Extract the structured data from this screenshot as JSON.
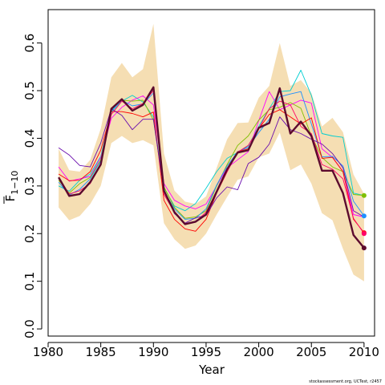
{
  "chart_data": {
    "type": "line",
    "xlabel": "Year",
    "ylabel_main": "F",
    "ylabel_sub": "1−10",
    "xlim": [
      1980,
      2011
    ],
    "ylim": [
      -0.015,
      0.67
    ],
    "x_ticks": [
      1980,
      1985,
      1990,
      1995,
      2000,
      2005,
      2010
    ],
    "y_ticks": [
      0.0,
      0.1,
      0.2,
      0.3,
      0.4,
      0.5,
      0.6
    ],
    "y_tick_labels": [
      "0.0",
      "0.1",
      "0.2",
      "0.3",
      "0.4",
      "0.5",
      "0.6"
    ],
    "credit": "stockassessment.org, UCTest, r2457",
    "band": {
      "color": "#F5DEB3",
      "x": [
        1981,
        1982,
        1983,
        1984,
        1985,
        1986,
        1987,
        1988,
        1989,
        1990,
        1991,
        1992,
        1993,
        1994,
        1995,
        1996,
        1997,
        1998,
        1999,
        2000,
        2001,
        2002,
        2003,
        2004,
        2005,
        2006,
        2007,
        2008,
        2009,
        2010
      ],
      "lower": [
        0.255,
        0.228,
        0.237,
        0.262,
        0.3,
        0.39,
        0.405,
        0.39,
        0.396,
        0.385,
        0.222,
        0.188,
        0.168,
        0.175,
        0.2,
        0.24,
        0.277,
        0.313,
        0.32,
        0.36,
        0.368,
        0.412,
        0.333,
        0.345,
        0.305,
        0.243,
        0.228,
        0.168,
        0.114,
        0.1
      ],
      "upper": [
        0.378,
        0.333,
        0.33,
        0.355,
        0.42,
        0.528,
        0.558,
        0.528,
        0.545,
        0.64,
        0.368,
        0.29,
        0.267,
        0.262,
        0.278,
        0.338,
        0.398,
        0.432,
        0.433,
        0.485,
        0.51,
        0.6,
        0.51,
        0.522,
        0.495,
        0.425,
        0.443,
        0.413,
        0.324,
        0.283
      ]
    },
    "series": [
      {
        "color": "#00CED1",
        "width": 0.9,
        "values": [
          0.3,
          0.289,
          0.312,
          0.325,
          0.362,
          0.455,
          0.478,
          0.49,
          0.476,
          0.445,
          0.296,
          0.258,
          0.248,
          0.263,
          0.295,
          0.33,
          0.358,
          0.37,
          0.384,
          0.425,
          0.462,
          0.498,
          0.5,
          0.543,
          0.49,
          0.41,
          0.405,
          0.402,
          0.285,
          0.28
        ],
        "end_dot": false
      },
      {
        "color": "#FF00FF",
        "width": 0.9,
        "values": [
          0.34,
          0.31,
          0.315,
          0.32,
          0.36,
          0.442,
          0.465,
          0.48,
          0.489,
          0.47,
          0.305,
          0.27,
          0.258,
          0.252,
          0.262,
          0.3,
          0.338,
          0.355,
          0.372,
          0.437,
          0.498,
          0.46,
          0.47,
          0.48,
          0.474,
          0.378,
          0.36,
          0.33,
          0.24,
          0.235
        ],
        "end_dot": false
      },
      {
        "color": "#7FBF00",
        "width": 0.9,
        "values": [
          0.312,
          0.285,
          0.305,
          0.318,
          0.355,
          0.46,
          0.48,
          0.478,
          0.48,
          0.438,
          0.298,
          0.255,
          0.232,
          0.235,
          0.248,
          0.3,
          0.345,
          0.385,
          0.405,
          0.438,
          0.46,
          0.465,
          0.475,
          0.463,
          0.405,
          0.36,
          0.34,
          0.33,
          0.282,
          0.28
        ],
        "end_dot": true
      },
      {
        "color": "#1E90FF",
        "width": 0.9,
        "values": [
          0.308,
          0.281,
          0.293,
          0.315,
          0.352,
          0.458,
          0.48,
          0.468,
          0.472,
          0.495,
          0.29,
          0.252,
          0.23,
          0.232,
          0.252,
          0.302,
          0.342,
          0.372,
          0.381,
          0.412,
          0.44,
          0.487,
          0.493,
          0.498,
          0.43,
          0.361,
          0.362,
          0.342,
          0.268,
          0.237
        ],
        "end_dot": true
      },
      {
        "color": "#FF0000",
        "width": 0.9,
        "values": [
          0.325,
          0.311,
          0.312,
          0.33,
          0.375,
          0.456,
          0.456,
          0.452,
          0.445,
          0.455,
          0.27,
          0.23,
          0.21,
          0.205,
          0.23,
          0.285,
          0.33,
          0.372,
          0.378,
          0.42,
          0.45,
          0.46,
          0.445,
          0.43,
          0.443,
          0.358,
          0.36,
          0.33,
          0.23,
          0.202
        ],
        "end_dot": true
      },
      {
        "color": "#FF0066",
        "width": 0.9,
        "values": [
          0.318,
          0.283,
          0.29,
          0.305,
          0.348,
          0.45,
          0.478,
          0.462,
          0.473,
          0.5,
          0.282,
          0.245,
          0.22,
          0.225,
          0.245,
          0.288,
          0.33,
          0.371,
          0.385,
          0.42,
          0.462,
          0.478,
          0.47,
          0.425,
          0.41,
          0.345,
          0.335,
          0.315,
          0.232,
          0.2
        ],
        "end_dot": true
      },
      {
        "color": "#6A0DAD",
        "width": 0.9,
        "values": [
          0.38,
          0.365,
          0.343,
          0.34,
          0.39,
          0.462,
          0.448,
          0.418,
          0.44,
          0.44,
          0.29,
          0.242,
          0.222,
          0.233,
          0.238,
          0.275,
          0.298,
          0.292,
          0.347,
          0.36,
          0.388,
          0.445,
          0.418,
          0.41,
          0.398,
          0.388,
          0.368,
          0.338,
          0.248,
          0.235
        ],
        "end_dot": false
      },
      {
        "color": "#5C0A2E",
        "width": 2.4,
        "values": [
          0.318,
          0.279,
          0.283,
          0.308,
          0.345,
          0.462,
          0.482,
          0.458,
          0.47,
          0.507,
          0.29,
          0.245,
          0.22,
          0.225,
          0.24,
          0.288,
          0.335,
          0.37,
          0.375,
          0.422,
          0.432,
          0.505,
          0.41,
          0.435,
          0.405,
          0.332,
          0.332,
          0.285,
          0.197,
          0.17
        ],
        "end_dot": true
      }
    ]
  }
}
